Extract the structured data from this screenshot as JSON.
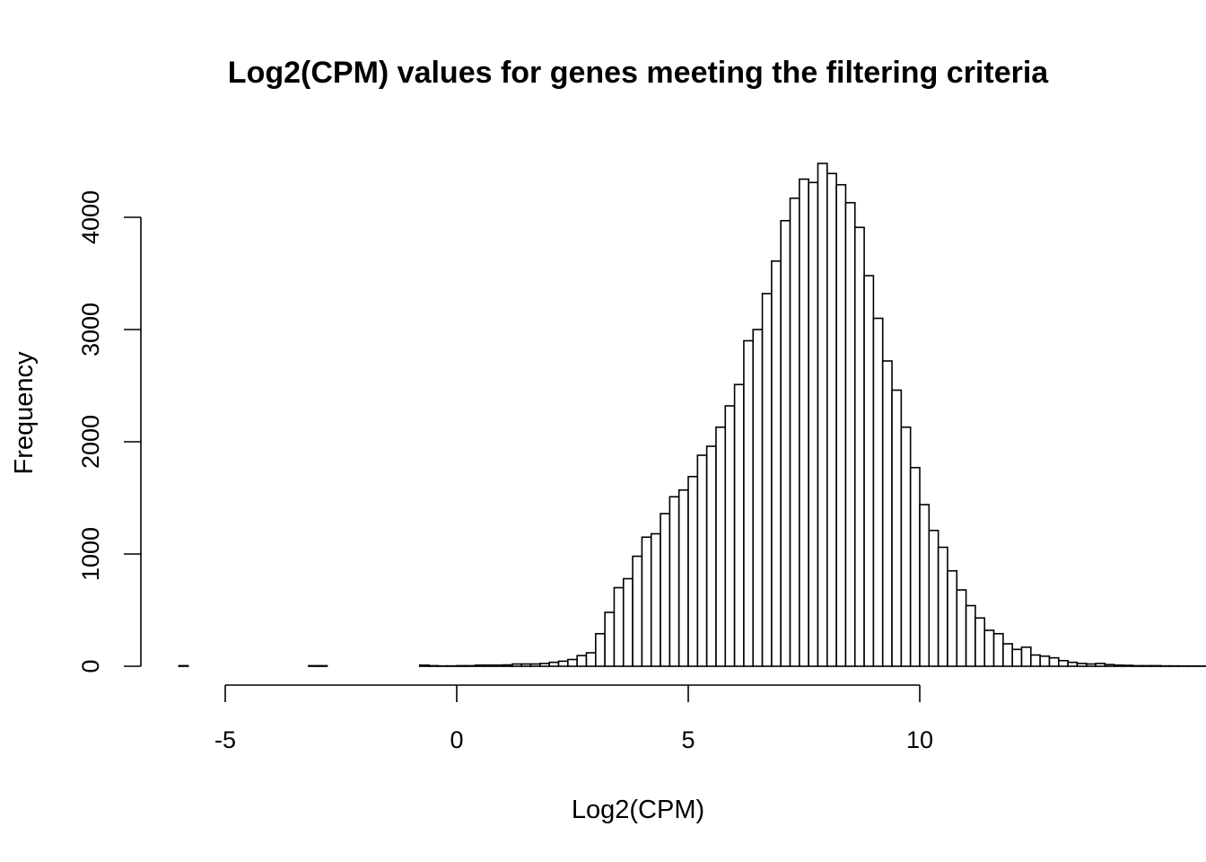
{
  "chart_data": {
    "type": "bar",
    "title": "Log2(CPM) values for genes meeting the filtering criteria",
    "xlabel": "Log2(CPM)",
    "ylabel": "Frequency",
    "xlim": [
      -6.2,
      14
    ],
    "ylim": [
      0,
      4500
    ],
    "x_ticks": [
      -5,
      0,
      5,
      10
    ],
    "y_ticks": [
      0,
      1000,
      2000,
      3000,
      4000
    ],
    "bin_width": 0.2,
    "bin_start": -6.0,
    "values": [
      5,
      0,
      0,
      0,
      0,
      0,
      0,
      0,
      0,
      0,
      0,
      0,
      0,
      0,
      5,
      5,
      0,
      0,
      0,
      0,
      0,
      0,
      0,
      0,
      0,
      0,
      10,
      5,
      3,
      3,
      5,
      5,
      10,
      10,
      10,
      12,
      20,
      20,
      20,
      25,
      35,
      45,
      60,
      95,
      120,
      290,
      480,
      700,
      780,
      980,
      1150,
      1180,
      1360,
      1510,
      1570,
      1690,
      1880,
      1960,
      2130,
      2320,
      2510,
      2900,
      3000,
      3320,
      3610,
      3970,
      4170,
      4340,
      4310,
      4480,
      4390,
      4290,
      4130,
      3910,
      3480,
      3100,
      2720,
      2460,
      2130,
      1770,
      1440,
      1210,
      1060,
      850,
      680,
      540,
      430,
      320,
      290,
      200,
      150,
      170,
      100,
      90,
      75,
      50,
      35,
      25,
      20,
      25,
      15,
      10,
      8,
      5,
      5,
      5,
      3,
      3,
      2,
      2,
      2
    ]
  }
}
